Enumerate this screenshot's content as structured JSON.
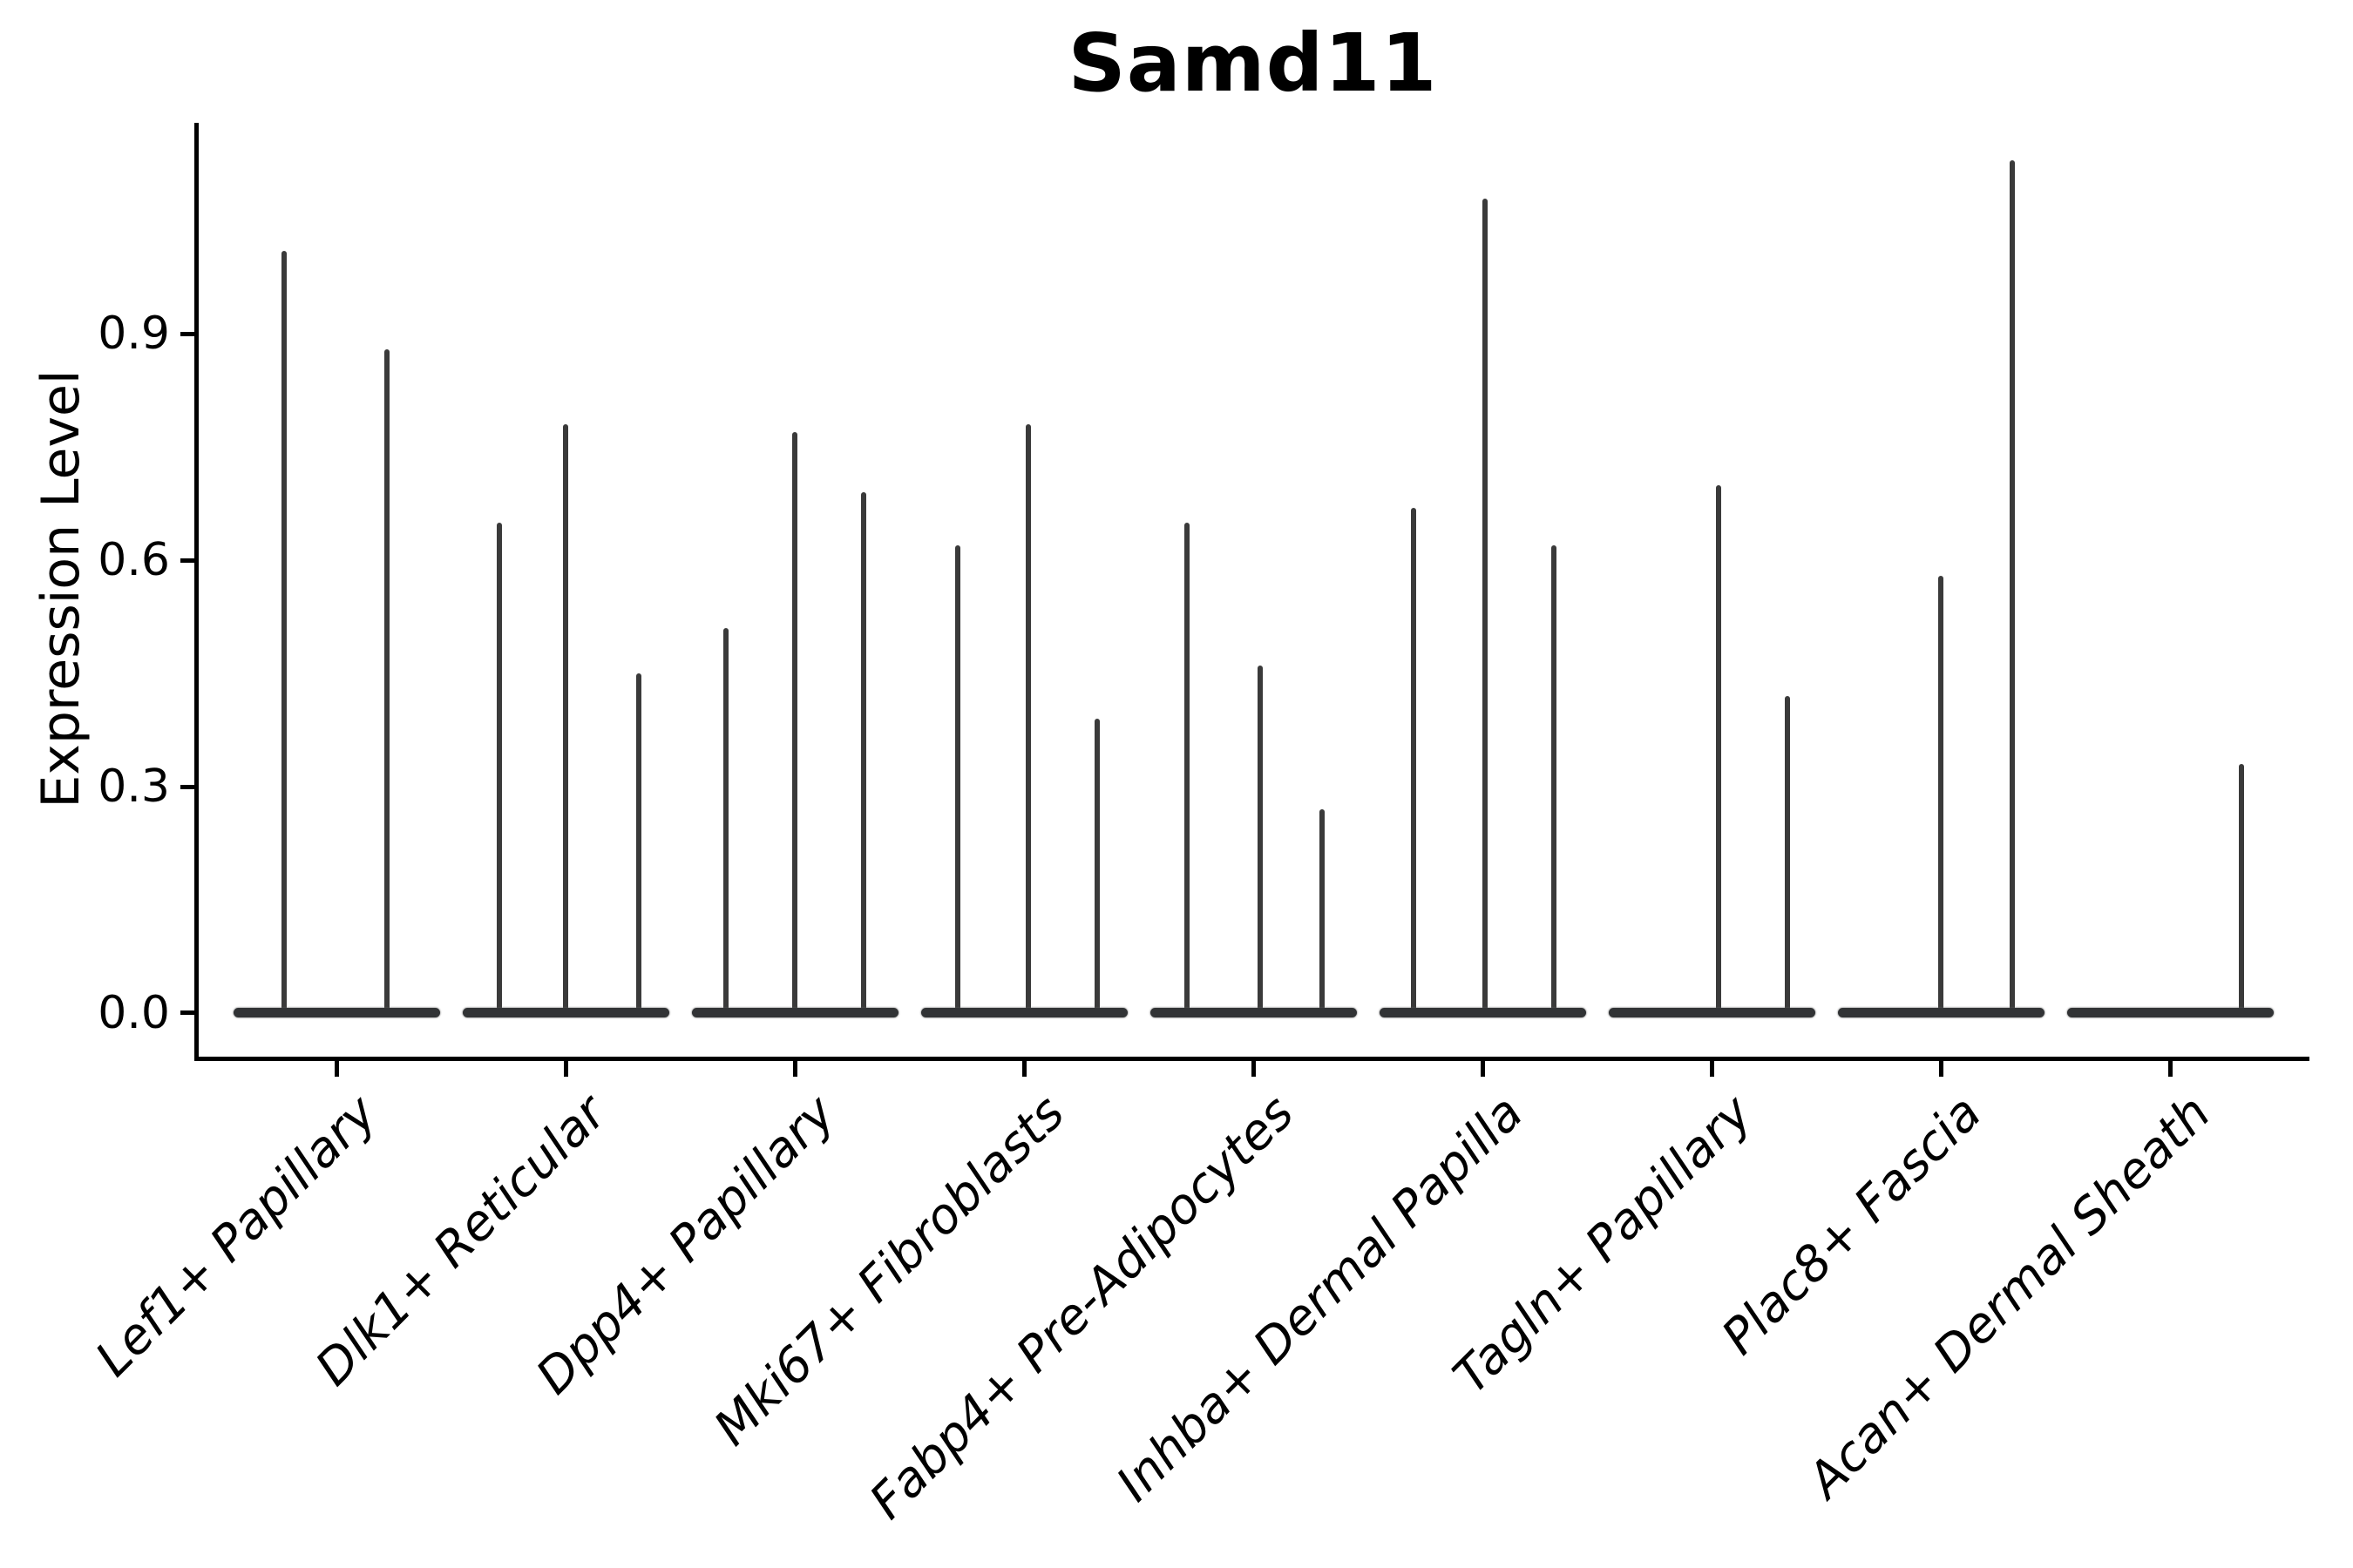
{
  "chart_data": {
    "type": "violin",
    "title": "Samd11",
    "ylabel": "Expression Level",
    "xlabel": "",
    "ylim": [
      -0.058,
      1.18
    ],
    "grid": false,
    "legend": "none",
    "axis_color": "#000000",
    "violin_color": "#333333",
    "yticks": [
      {
        "value": 0.0,
        "label": "0.0"
      },
      {
        "value": 0.3,
        "label": "0.3"
      },
      {
        "value": 0.6,
        "label": "0.6"
      },
      {
        "value": 0.9,
        "label": "0.9"
      }
    ],
    "categories": [
      {
        "label": "Lef1+ Papillary",
        "spikes": [
          {
            "dx": -0.23,
            "value": 1.01
          },
          {
            "dx": 0.22,
            "value": 0.88
          }
        ]
      },
      {
        "label": "Dlk1+ Reticular",
        "spikes": [
          {
            "dx": -0.29,
            "value": 0.65
          },
          {
            "dx": 0.0,
            "value": 0.78
          },
          {
            "dx": 0.32,
            "value": 0.45
          }
        ]
      },
      {
        "label": "Dpp4+ Papillary",
        "spikes": [
          {
            "dx": -0.3,
            "value": 0.51
          },
          {
            "dx": 0.0,
            "value": 0.77
          },
          {
            "dx": 0.3,
            "value": 0.69
          }
        ]
      },
      {
        "label": "Mki67+ Fibroblasts",
        "spikes": [
          {
            "dx": -0.29,
            "value": 0.62
          },
          {
            "dx": 0.02,
            "value": 0.78
          },
          {
            "dx": 0.32,
            "value": 0.39
          }
        ]
      },
      {
        "label": "Fabp4+ Pre-Adipocytes",
        "spikes": [
          {
            "dx": -0.29,
            "value": 0.65
          },
          {
            "dx": 0.03,
            "value": 0.46
          },
          {
            "dx": 0.3,
            "value": 0.27
          }
        ]
      },
      {
        "label": "Inhba+ Dermal Papilla",
        "spikes": [
          {
            "dx": -0.3,
            "value": 0.67
          },
          {
            "dx": 0.01,
            "value": 1.08
          },
          {
            "dx": 0.31,
            "value": 0.62
          }
        ]
      },
      {
        "label": "Tagln+ Papillary",
        "spikes": [
          {
            "dx": 0.03,
            "value": 0.7
          },
          {
            "dx": 0.33,
            "value": 0.42
          }
        ]
      },
      {
        "label": "Plac8+ Fascia",
        "spikes": [
          {
            "dx": 0.0,
            "value": 0.58
          },
          {
            "dx": 0.31,
            "value": 1.13
          }
        ]
      },
      {
        "label": "Acan+ Dermal Sheath",
        "spikes": [
          {
            "dx": 0.31,
            "value": 0.33
          }
        ]
      }
    ]
  }
}
